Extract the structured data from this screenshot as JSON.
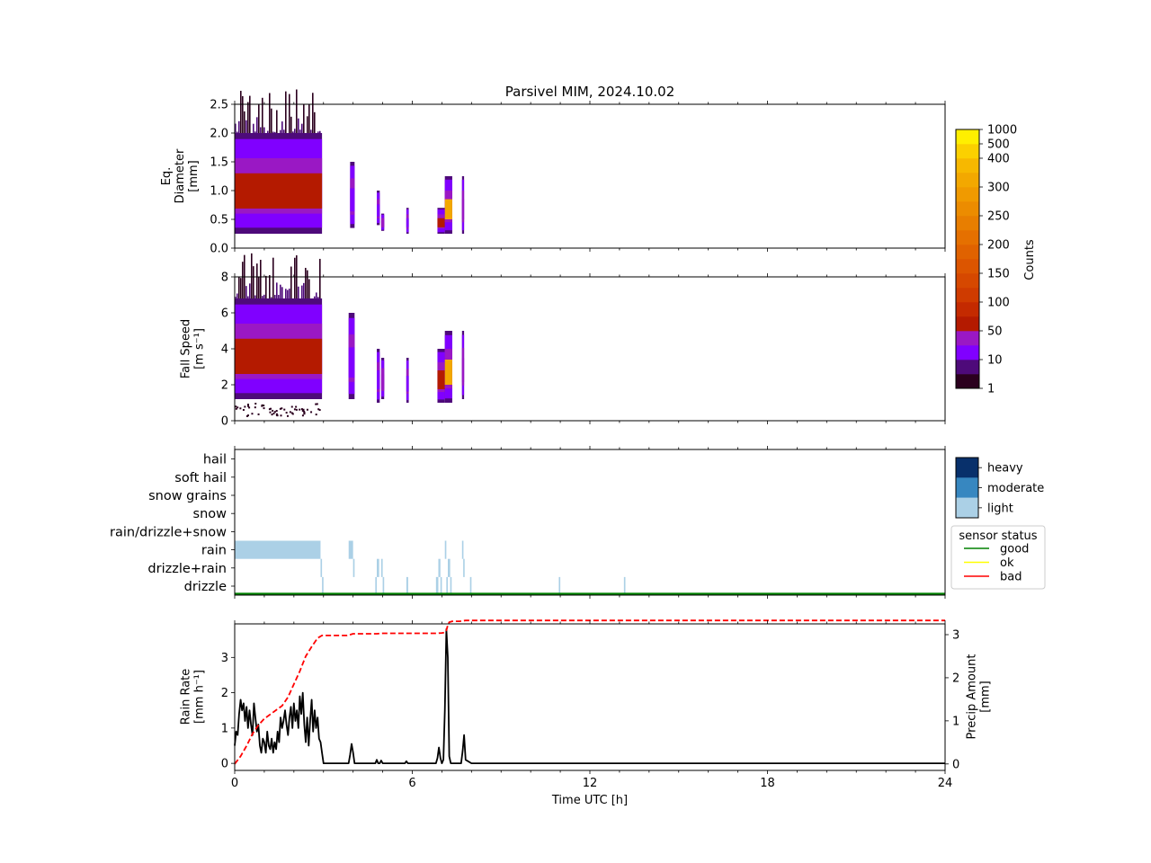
{
  "title": "Parsivel MIM, 2024.10.02",
  "colors": {
    "ppd_bins": [
      "#2b001e",
      "#4e0a7a",
      "#8000ff",
      "#9a18c4",
      "#b41a00",
      "#c42a00",
      "#cf3b00",
      "#d64800",
      "#dc5500",
      "#e06200",
      "#e57000",
      "#e87e00",
      "#ec8c00",
      "#f09a00",
      "#f3a800",
      "#f7b800",
      "#fbd000",
      "#ffef00"
    ],
    "ptype_light": "#abd0e6",
    "ptype_moderate": "#3787c0",
    "ptype_heavy": "#08306b",
    "status_good": "#008000",
    "status_ok": "#ffff00",
    "status_bad": "#ff0000",
    "rain_rate_line": "#000000",
    "precip_amount_line": "#ff0000"
  },
  "chart_data": [
    {
      "type": "heatmap",
      "panel": "diameter",
      "ylabel_lines": [
        "Eq.",
        "Diameter",
        "[mm]"
      ],
      "ylim": [
        0,
        2.5
      ],
      "yticks": [
        "0.0",
        "0.5",
        "1.0",
        "1.5",
        "2.0",
        "2.5"
      ],
      "xlim": [
        0,
        24
      ],
      "segments": [
        {
          "t0": 0.0,
          "t1": 2.95,
          "y0": 0.25,
          "y1": 2.0,
          "core_level": 4
        },
        {
          "t0": 3.9,
          "t1": 4.05,
          "y0": 0.35,
          "y1": 1.5,
          "core_level": 2
        },
        {
          "t0": 4.8,
          "t1": 4.9,
          "y0": 0.4,
          "y1": 1.0,
          "core_level": 2
        },
        {
          "t0": 4.95,
          "t1": 5.05,
          "y0": 0.3,
          "y1": 0.6,
          "core_level": 3
        },
        {
          "t0": 5.8,
          "t1": 5.88,
          "y0": 0.25,
          "y1": 0.7,
          "core_level": 2
        },
        {
          "t0": 6.85,
          "t1": 7.1,
          "y0": 0.25,
          "y1": 0.7,
          "core_level": 4
        },
        {
          "t0": 7.1,
          "t1": 7.35,
          "y0": 0.25,
          "y1": 1.25,
          "core_level": 14
        },
        {
          "t0": 7.68,
          "t1": 7.75,
          "y0": 0.25,
          "y1": 1.25,
          "core_level": 3
        }
      ]
    },
    {
      "type": "heatmap",
      "panel": "fall_speed",
      "ylabel_lines": [
        "Fall Speed",
        "[m s⁻¹]"
      ],
      "ylim": [
        0,
        8
      ],
      "yticks": [
        "0",
        "2",
        "4",
        "6",
        "8"
      ],
      "xlim": [
        0,
        24
      ],
      "segments": [
        {
          "t0": 0.0,
          "t1": 2.95,
          "y0": 1.2,
          "y1": 6.8,
          "core_level": 4
        },
        {
          "t0": 3.85,
          "t1": 4.05,
          "y0": 1.2,
          "y1": 6.0,
          "core_level": 2
        },
        {
          "t0": 4.8,
          "t1": 4.9,
          "y0": 1.0,
          "y1": 4.0,
          "core_level": 2
        },
        {
          "t0": 4.95,
          "t1": 5.05,
          "y0": 1.2,
          "y1": 3.5,
          "core_level": 3
        },
        {
          "t0": 5.8,
          "t1": 5.88,
          "y0": 1.0,
          "y1": 3.5,
          "core_level": 2
        },
        {
          "t0": 6.85,
          "t1": 7.1,
          "y0": 1.0,
          "y1": 4.0,
          "core_level": 4
        },
        {
          "t0": 7.1,
          "t1": 7.35,
          "y0": 1.0,
          "y1": 5.0,
          "core_level": 14
        },
        {
          "t0": 7.68,
          "t1": 7.75,
          "y0": 1.2,
          "y1": 5.0,
          "core_level": 3
        }
      ]
    },
    {
      "type": "heatmap",
      "panel": "precip_type",
      "categories": [
        "drizzle",
        "drizzle+rain",
        "rain",
        "rain/drizzle+snow",
        "snow",
        "snow grains",
        "soft hail",
        "hail"
      ],
      "xlim": [
        0,
        24
      ],
      "blocks": [
        {
          "t0": 0.0,
          "t1": 2.9,
          "cat": "rain",
          "intensity": "light"
        },
        {
          "t0": 2.9,
          "t1": 2.95,
          "cat": "drizzle+rain",
          "intensity": "light"
        },
        {
          "t0": 2.95,
          "t1": 3.0,
          "cat": "drizzle",
          "intensity": "light"
        },
        {
          "t0": 3.85,
          "t1": 4.0,
          "cat": "rain",
          "intensity": "light"
        },
        {
          "t0": 4.0,
          "t1": 4.05,
          "cat": "drizzle+rain",
          "intensity": "light"
        },
        {
          "t0": 4.75,
          "t1": 4.8,
          "cat": "drizzle",
          "intensity": "light"
        },
        {
          "t0": 4.8,
          "t1": 4.88,
          "cat": "drizzle+rain",
          "intensity": "light"
        },
        {
          "t0": 4.95,
          "t1": 5.0,
          "cat": "drizzle+rain",
          "intensity": "light"
        },
        {
          "t0": 5.0,
          "t1": 5.05,
          "cat": "drizzle",
          "intensity": "light"
        },
        {
          "t0": 5.8,
          "t1": 5.86,
          "cat": "drizzle",
          "intensity": "light"
        },
        {
          "t0": 6.8,
          "t1": 6.88,
          "cat": "drizzle",
          "intensity": "light"
        },
        {
          "t0": 6.88,
          "t1": 6.95,
          "cat": "drizzle+rain",
          "intensity": "light"
        },
        {
          "t0": 6.95,
          "t1": 7.0,
          "cat": "drizzle",
          "intensity": "light"
        },
        {
          "t0": 7.1,
          "t1": 7.15,
          "cat": "rain",
          "intensity": "light"
        },
        {
          "t0": 7.15,
          "t1": 7.2,
          "cat": "drizzle",
          "intensity": "light"
        },
        {
          "t0": 7.2,
          "t1": 7.28,
          "cat": "drizzle+rain",
          "intensity": "light"
        },
        {
          "t0": 7.28,
          "t1": 7.33,
          "cat": "drizzle",
          "intensity": "light"
        },
        {
          "t0": 7.68,
          "t1": 7.72,
          "cat": "rain",
          "intensity": "light"
        },
        {
          "t0": 7.72,
          "t1": 7.76,
          "cat": "drizzle+rain",
          "intensity": "light"
        },
        {
          "t0": 7.95,
          "t1": 8.0,
          "cat": "drizzle",
          "intensity": "light"
        },
        {
          "t0": 10.95,
          "t1": 11.0,
          "cat": "drizzle",
          "intensity": "light"
        },
        {
          "t0": 13.15,
          "t1": 13.2,
          "cat": "drizzle",
          "intensity": "light"
        }
      ],
      "legend": {
        "intensity_labels": [
          "heavy",
          "moderate",
          "light"
        ]
      },
      "status": {
        "title": "sensor status",
        "labels": [
          "good",
          "ok",
          "bad"
        ],
        "segments": [
          {
            "t0": 0,
            "t1": 24,
            "status": "good"
          }
        ]
      }
    },
    {
      "type": "line",
      "panel": "rain",
      "xlabel": "Time UTC [h]",
      "xticks": [
        "0",
        "6",
        "12",
        "18",
        "24"
      ],
      "xlim": [
        0,
        24
      ],
      "left_axis": {
        "label_lines": [
          "Rain Rate",
          "[mm h⁻¹]"
        ],
        "ylim": [
          -0.2,
          3.95
        ],
        "yticks": [
          "0",
          "1",
          "2",
          "3"
        ]
      },
      "right_axis": {
        "label_lines": [
          "Precip Amount",
          "[mm]"
        ],
        "ylim": [
          -0.15,
          3.25
        ],
        "yticks": [
          "0",
          "1",
          "2",
          "3"
        ]
      },
      "series": [
        {
          "role": "rain_rate",
          "axis": "left",
          "style": "solid",
          "x": [
            0,
            0.05,
            0.1,
            0.15,
            0.2,
            0.25,
            0.3,
            0.35,
            0.4,
            0.45,
            0.5,
            0.55,
            0.6,
            0.65,
            0.7,
            0.75,
            0.8,
            0.85,
            0.9,
            0.95,
            1.0,
            1.05,
            1.1,
            1.15,
            1.2,
            1.25,
            1.3,
            1.35,
            1.4,
            1.45,
            1.5,
            1.55,
            1.6,
            1.65,
            1.7,
            1.75,
            1.8,
            1.85,
            1.9,
            1.95,
            2.0,
            2.05,
            2.1,
            2.15,
            2.2,
            2.25,
            2.3,
            2.35,
            2.4,
            2.45,
            2.5,
            2.55,
            2.6,
            2.65,
            2.7,
            2.75,
            2.8,
            2.85,
            2.9,
            2.95,
            3.0,
            3.5,
            3.85,
            3.9,
            3.95,
            4.0,
            4.05,
            4.1,
            4.5,
            4.75,
            4.8,
            4.85,
            4.9,
            4.95,
            5.0,
            5.05,
            5.1,
            5.75,
            5.8,
            5.85,
            5.9,
            6.8,
            6.85,
            6.9,
            6.95,
            7.0,
            7.05,
            7.1,
            7.15,
            7.2,
            7.25,
            7.3,
            7.35,
            7.4,
            7.65,
            7.7,
            7.75,
            7.8,
            8.0,
            12,
            18,
            24
          ],
          "y": [
            0.5,
            0.9,
            0.8,
            1.4,
            1.8,
            1.5,
            1.7,
            1.2,
            1.6,
            1.0,
            1.5,
            1.1,
            0.8,
            1.7,
            1.3,
            0.9,
            1.1,
            0.5,
            0.3,
            0.7,
            0.6,
            0.3,
            0.9,
            0.5,
            0.4,
            0.7,
            0.3,
            0.6,
            0.4,
            0.9,
            0.6,
            1.3,
            1.0,
            1.2,
            1.5,
            1.1,
            0.8,
            1.3,
            1.6,
            1.0,
            1.7,
            1.2,
            1.5,
            1.0,
            1.9,
            1.4,
            2.0,
            1.1,
            0.6,
            1.3,
            0.5,
            1.2,
            1.8,
            0.9,
            1.5,
            1.0,
            1.3,
            0.7,
            0.6,
            0.3,
            0.0,
            0.0,
            0.0,
            0.25,
            0.55,
            0.3,
            0.0,
            0.0,
            0.0,
            0.0,
            0.1,
            0.0,
            0.0,
            0.08,
            0.0,
            0.0,
            0.0,
            0.0,
            0.06,
            0.0,
            0.0,
            0.0,
            0.15,
            0.45,
            0.15,
            0.0,
            0.1,
            1.5,
            3.8,
            3.0,
            0.2,
            0.0,
            0.0,
            0.0,
            0.0,
            0.35,
            0.8,
            0.1,
            0.0,
            0.0,
            0.0,
            0.0
          ]
        },
        {
          "role": "precip_amount",
          "axis": "right",
          "style": "dashed",
          "x": [
            0,
            0.2,
            0.4,
            0.6,
            0.8,
            1.0,
            1.2,
            1.4,
            1.6,
            1.8,
            2.0,
            2.2,
            2.4,
            2.6,
            2.8,
            2.95,
            3.2,
            3.5,
            3.8,
            3.9,
            4.0,
            4.1,
            4.5,
            4.8,
            5.0,
            6.0,
            6.8,
            7.0,
            7.1,
            7.15,
            7.2,
            7.25,
            7.3,
            7.35,
            7.6,
            7.7,
            7.8,
            8.0,
            12,
            18,
            24
          ],
          "y": [
            0.0,
            0.18,
            0.42,
            0.7,
            0.9,
            1.05,
            1.15,
            1.25,
            1.35,
            1.55,
            1.85,
            2.15,
            2.5,
            2.72,
            2.92,
            2.98,
            2.98,
            2.98,
            2.98,
            3.0,
            3.02,
            3.02,
            3.02,
            3.02,
            3.03,
            3.03,
            3.03,
            3.04,
            3.05,
            3.1,
            3.22,
            3.29,
            3.3,
            3.31,
            3.31,
            3.32,
            3.33,
            3.33,
            3.33,
            3.33,
            3.33
          ]
        }
      ]
    }
  ],
  "colorbar": {
    "label": "Counts",
    "tick_labels": [
      "1",
      "10",
      "50",
      "100",
      "150",
      "200",
      "250",
      "300",
      "400",
      "500",
      "1000"
    ]
  }
}
